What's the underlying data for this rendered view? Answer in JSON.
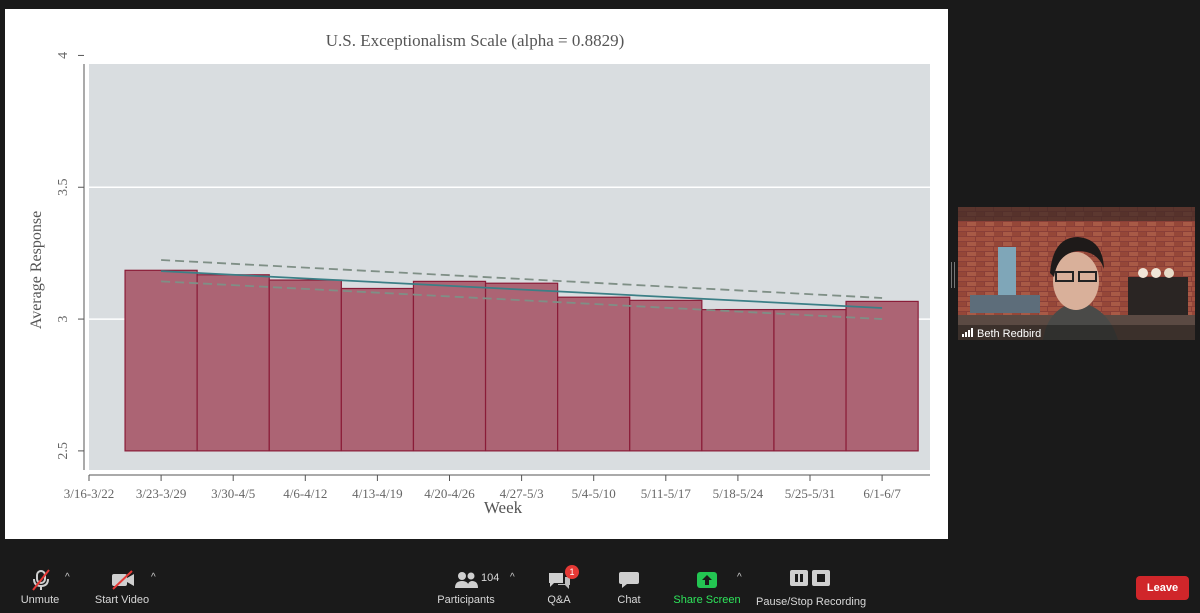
{
  "chart_data": {
    "type": "bar",
    "title": "U.S. Exceptionalism Scale (alpha = 0.8829)",
    "xlabel": "Week",
    "ylabel": "Average Response",
    "ylim": [
      2.5,
      4
    ],
    "yticks": [
      "2.5",
      "3",
      "3.5",
      "4"
    ],
    "ytick_values": [
      2.5,
      3,
      3.5,
      4
    ],
    "categories": [
      "3/16-3/22",
      "3/23-3/29",
      "3/30-4/5",
      "4/6-4/12",
      "4/13-4/19",
      "4/20-4/26",
      "4/27-5/3",
      "5/4-5/10",
      "5/11-5/17",
      "5/18-5/24",
      "5/25-5/31",
      "6/1-6/7"
    ],
    "bars": [
      {
        "category": "3/23-3/29",
        "value": 3.185
      },
      {
        "category": "3/30-4/5",
        "value": 3.168
      },
      {
        "category": "4/6-4/12",
        "value": 3.148
      },
      {
        "category": "4/13-4/19",
        "value": 3.116
      },
      {
        "category": "4/20-4/26",
        "value": 3.143
      },
      {
        "category": "4/27-5/3",
        "value": 3.136
      },
      {
        "category": "5/4-5/10",
        "value": 3.083
      },
      {
        "category": "5/11-5/17",
        "value": 3.071
      },
      {
        "category": "5/18-5/24",
        "value": 3.036
      },
      {
        "category": "5/25-5/31",
        "value": 3.036
      },
      {
        "category": "6/1-6/7",
        "value": 3.067
      }
    ],
    "fit_line": {
      "x": [
        1,
        11
      ],
      "y": [
        3.182,
        3.042
      ]
    },
    "ci_upper": {
      "x": [
        1,
        11
      ],
      "y": [
        3.224,
        3.08
      ]
    },
    "ci_lower": {
      "x": [
        1,
        11
      ],
      "y": [
        3.143,
        3.0
      ]
    },
    "grid": true,
    "colors": {
      "bar_fill": "#ac6474",
      "bar_edge": "#8a1c38",
      "fit": "#3b7f86",
      "ci": "#7f8f86",
      "plot_bg": "#d9dde0"
    }
  },
  "video": {
    "participant_name": "Beth Redbird"
  },
  "toolbar": {
    "unmute_label": "Unmute",
    "start_video_label": "Start Video",
    "participants_label": "Participants",
    "participants_count": "104",
    "qa_label": "Q&A",
    "qa_badge": "1",
    "chat_label": "Chat",
    "share_label": "Share Screen",
    "recording_label": "Pause/Stop Recording",
    "leave_label": "Leave"
  }
}
